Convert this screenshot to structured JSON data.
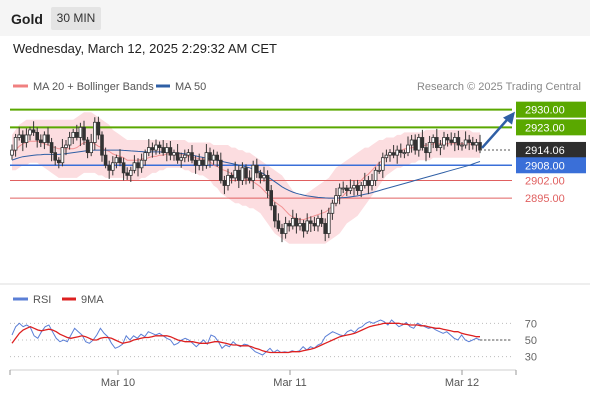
{
  "header": {
    "instrument": "Gold",
    "timeframe": "30 MIN"
  },
  "timestamp": "Wednesday, March 12, 2025 2:29:32 AM CET",
  "colors": {
    "bollinger": "#f08080",
    "band_fill": "#fcdde0",
    "ma50": "#2f5fa5",
    "resistance": "#5aa800",
    "support_pivot": "#3a6fd8",
    "support": "#e06060",
    "price_label": "#2e2e2e",
    "rsi": "#5b7fd6",
    "rsi_ma": "#dd2020"
  },
  "chart_data": [
    {
      "type": "candlestick",
      "legend": {
        "bollinger": "MA 20 + Bollinger Bands",
        "ma50": "MA 50",
        "credit": "Research © 2025 Trading Central"
      },
      "ylim": [
        2865,
        2935
      ],
      "x_ticks": [
        "Mar 10",
        "Mar 11",
        "Mar 12"
      ],
      "levels": [
        {
          "value": 2930.0,
          "label": "2930.00",
          "kind": "resistance"
        },
        {
          "value": 2923.0,
          "label": "2923.00",
          "kind": "resistance"
        },
        {
          "value": 2914.06,
          "label": "2914.06",
          "kind": "last"
        },
        {
          "value": 2908.0,
          "label": "2908.00",
          "kind": "pivot"
        },
        {
          "value": 2902.0,
          "label": "2902.00",
          "kind": "support"
        },
        {
          "value": 2895.0,
          "label": "2895.00",
          "kind": "support"
        }
      ],
      "projection": {
        "from": 2914.06,
        "to": 2930.0
      },
      "closes": [
        2914,
        2919,
        2920,
        2917,
        2920,
        2922,
        2921,
        2918,
        2917,
        2920,
        2917,
        2913,
        2910,
        2909,
        2915,
        2916,
        2919,
        2921,
        2919,
        2923,
        2918,
        2913,
        2917,
        2925,
        2920,
        2912,
        2908,
        2906,
        2909,
        2911,
        2909,
        2905,
        2904,
        2906,
        2909,
        2907,
        2910,
        2913,
        2915,
        2914,
        2916,
        2915,
        2913,
        2915,
        2912,
        2913,
        2910,
        2911,
        2912,
        2913,
        2910,
        2908,
        2910,
        2908,
        2913,
        2910,
        2912,
        2910,
        2902,
        2900,
        2904,
        2903,
        2906,
        2902,
        2907,
        2903,
        2902,
        2908,
        2905,
        2903,
        2904,
        2898,
        2892,
        2886,
        2883,
        2881,
        2885,
        2884,
        2887,
        2884,
        2885,
        2882,
        2886,
        2885,
        2884,
        2887,
        2885,
        2881,
        2889,
        2893,
        2896,
        2899,
        2899,
        2898,
        2899,
        2900,
        2898,
        2900,
        2902,
        2900,
        2902,
        2906,
        2906,
        2911,
        2912,
        2913,
        2912,
        2914,
        2913,
        2913,
        2916,
        2918,
        2914,
        2919,
        2915,
        2913,
        2917,
        2919,
        2915,
        2916,
        2919,
        2918,
        2917,
        2919,
        2916,
        2916,
        2918,
        2917,
        2916,
        2917,
        2914
      ],
      "ma50": [
        2910.0,
        2910.5,
        2911.0,
        2911.4,
        2911.6,
        2911.8,
        2912.0,
        2912.1,
        2912.2,
        2912.3,
        2912.3,
        2912.3,
        2912.3,
        2912.3,
        2912.4,
        2912.6,
        2912.8,
        2913.0,
        2913.2,
        2913.4,
        2913.6,
        2913.8,
        2913.9,
        2914.0,
        2914.0,
        2914.0,
        2914.0,
        2914.0,
        2914.0,
        2914.0,
        2914.0,
        2913.9,
        2913.8,
        2913.7,
        2913.6,
        2913.5,
        2913.4,
        2913.3,
        2913.3,
        2913.3,
        2913.3,
        2913.3,
        2913.2,
        2913.1,
        2913.0,
        2912.9,
        2912.8,
        2912.7,
        2912.5,
        2912.3,
        2912.0,
        2911.7,
        2911.4,
        2911.1,
        2910.8,
        2910.5,
        2910.2,
        2910.0,
        2909.7,
        2909.3,
        2909.0,
        2908.7,
        2908.4,
        2908.1,
        2907.8,
        2907.4,
        2907.0,
        2906.5,
        2906.0,
        2905.3,
        2904.5,
        2903.5,
        2902.5,
        2901.5,
        2900.5,
        2899.5,
        2898.7,
        2898.0,
        2897.4,
        2896.9,
        2896.5,
        2896.2,
        2895.9,
        2895.7,
        2895.5,
        2895.3,
        2895.2,
        2895.1,
        2895.0,
        2895.0,
        2895.0,
        2895.1,
        2895.2,
        2895.3,
        2895.5,
        2895.7,
        2895.9,
        2896.2,
        2896.5,
        2896.8,
        2897.2,
        2897.6,
        2898.0,
        2898.4,
        2898.8,
        2899.2,
        2899.6,
        2900.0,
        2900.4,
        2900.8,
        2901.2,
        2901.6,
        2902.0,
        2902.4,
        2902.8,
        2903.2,
        2903.6,
        2904.0,
        2904.4,
        2904.8,
        2905.2,
        2905.6,
        2906.0,
        2906.4,
        2906.8,
        2907.2,
        2907.6,
        2908.0,
        2908.5,
        2909.0,
        2909.5
      ],
      "bb_upper": [
        2920,
        2922,
        2924,
        2925,
        2926,
        2926,
        2926,
        2926,
        2926,
        2926,
        2926,
        2926,
        2926,
        2926,
        2926,
        2926,
        2926,
        2926,
        2927,
        2928,
        2929,
        2929,
        2929,
        2928,
        2927,
        2926,
        2925,
        2924,
        2922,
        2921,
        2920,
        2919,
        2918,
        2918,
        2918,
        2918,
        2918,
        2918,
        2918,
        2918,
        2918,
        2918,
        2918,
        2918,
        2918,
        2918,
        2918,
        2918,
        2918,
        2917,
        2917,
        2917,
        2917,
        2917,
        2917,
        2917,
        2916,
        2916,
        2916,
        2916,
        2916,
        2915,
        2915,
        2914,
        2914,
        2913,
        2913,
        2912,
        2911,
        2910,
        2909,
        2908,
        2907,
        2906,
        2905,
        2904,
        2902,
        2900,
        2898,
        2897,
        2896,
        2896,
        2897,
        2898,
        2899,
        2900,
        2901,
        2902,
        2903,
        2905,
        2907,
        2908,
        2909,
        2910,
        2911,
        2912,
        2913,
        2914,
        2915,
        2915,
        2916,
        2917,
        2918,
        2918,
        2919,
        2919,
        2919,
        2920,
        2920,
        2921,
        2921,
        2921,
        2921,
        2921,
        2921,
        2922,
        2922,
        2922,
        2922,
        2922,
        2922,
        2922,
        2922,
        2922,
        2922,
        2922,
        2922,
        2922,
        2921,
        2921,
        2921
      ],
      "bb_lower": [
        2906,
        2906,
        2907,
        2908,
        2908,
        2909,
        2909,
        2909,
        2908,
        2907,
        2906,
        2905,
        2904,
        2903,
        2903,
        2903,
        2903,
        2903,
        2903,
        2904,
        2905,
        2905,
        2905,
        2905,
        2904,
        2904,
        2903,
        2903,
        2903,
        2903,
        2903,
        2903,
        2902,
        2902,
        2902,
        2902,
        2903,
        2903,
        2904,
        2905,
        2905,
        2906,
        2906,
        2907,
        2907,
        2907,
        2907,
        2907,
        2906,
        2906,
        2905,
        2905,
        2904,
        2904,
        2903,
        2902,
        2900,
        2899,
        2897,
        2896,
        2895,
        2894,
        2893,
        2893,
        2892,
        2892,
        2891,
        2891,
        2890,
        2889,
        2887,
        2885,
        2883,
        2881,
        2880,
        2879,
        2878,
        2877,
        2877,
        2877,
        2877,
        2877,
        2877,
        2877,
        2877,
        2877,
        2877,
        2877,
        2878,
        2879,
        2880,
        2881,
        2883,
        2885,
        2886,
        2887,
        2888,
        2890,
        2892,
        2894,
        2896,
        2898,
        2900,
        2902,
        2904,
        2905,
        2906,
        2907,
        2907,
        2908,
        2908,
        2909,
        2909,
        2910,
        2910,
        2910,
        2910,
        2911,
        2911,
        2911,
        2911,
        2911,
        2911,
        2911,
        2911,
        2911,
        2911,
        2911,
        2911,
        2911,
        2911
      ]
    },
    {
      "type": "line",
      "legend": {
        "rsi": "RSI",
        "rsi_ma": "9MA"
      },
      "ylim": [
        20,
        80
      ],
      "y_ticks": [
        70,
        50,
        30
      ],
      "rsi": [
        56,
        66,
        70,
        66,
        68,
        65,
        55,
        52,
        60,
        66,
        68,
        60,
        52,
        48,
        50,
        48,
        56,
        64,
        60,
        56,
        48,
        46,
        50,
        56,
        64,
        58,
        54,
        46,
        40,
        42,
        45,
        55,
        50,
        55,
        52,
        57,
        54,
        60,
        58,
        56,
        58,
        55,
        52,
        50,
        44,
        46,
        50,
        52,
        50,
        46,
        42,
        46,
        50,
        45,
        56,
        54,
        48,
        40,
        44,
        42,
        48,
        44,
        42,
        45,
        44,
        40,
        36,
        34,
        32,
        36,
        40,
        35,
        38,
        35,
        36,
        35,
        37,
        36,
        37,
        42,
        38,
        42,
        40,
        44,
        46,
        54,
        57,
        60,
        58,
        56,
        55,
        60,
        62,
        59,
        64,
        66,
        70,
        72,
        70,
        72,
        74,
        72,
        68,
        74,
        70,
        66,
        68,
        71,
        66,
        64,
        70,
        68,
        66,
        64,
        65,
        62,
        60,
        58,
        60,
        56,
        52,
        50,
        56,
        50,
        48,
        50,
        52,
        50
      ],
      "ma9": [
        46,
        52,
        58,
        62,
        64,
        66,
        64,
        62,
        61,
        62,
        63,
        62,
        60,
        57,
        55,
        53,
        52,
        53,
        54,
        55,
        54,
        52,
        50,
        50,
        52,
        53,
        53,
        52,
        50,
        48,
        46,
        47,
        48,
        50,
        51,
        52,
        53,
        53,
        54,
        55,
        55,
        55,
        55,
        54,
        52,
        50,
        49,
        48,
        48,
        48,
        47,
        46,
        46,
        46,
        47,
        48,
        48,
        47,
        46,
        45,
        44,
        44,
        43,
        43,
        43,
        42,
        40,
        39,
        37,
        36,
        35,
        35,
        35,
        35,
        35,
        35,
        36,
        36,
        36,
        37,
        38,
        39,
        40,
        42,
        44,
        46,
        48,
        50,
        52,
        54,
        55,
        56,
        57,
        58,
        60,
        62,
        64,
        66,
        67,
        68,
        69,
        70,
        70,
        70,
        70,
        70,
        69,
        69,
        68,
        68,
        68,
        67,
        67,
        66,
        65,
        64,
        64,
        63,
        62,
        61,
        60,
        60,
        58,
        57,
        56,
        55,
        54,
        54
      ]
    }
  ]
}
